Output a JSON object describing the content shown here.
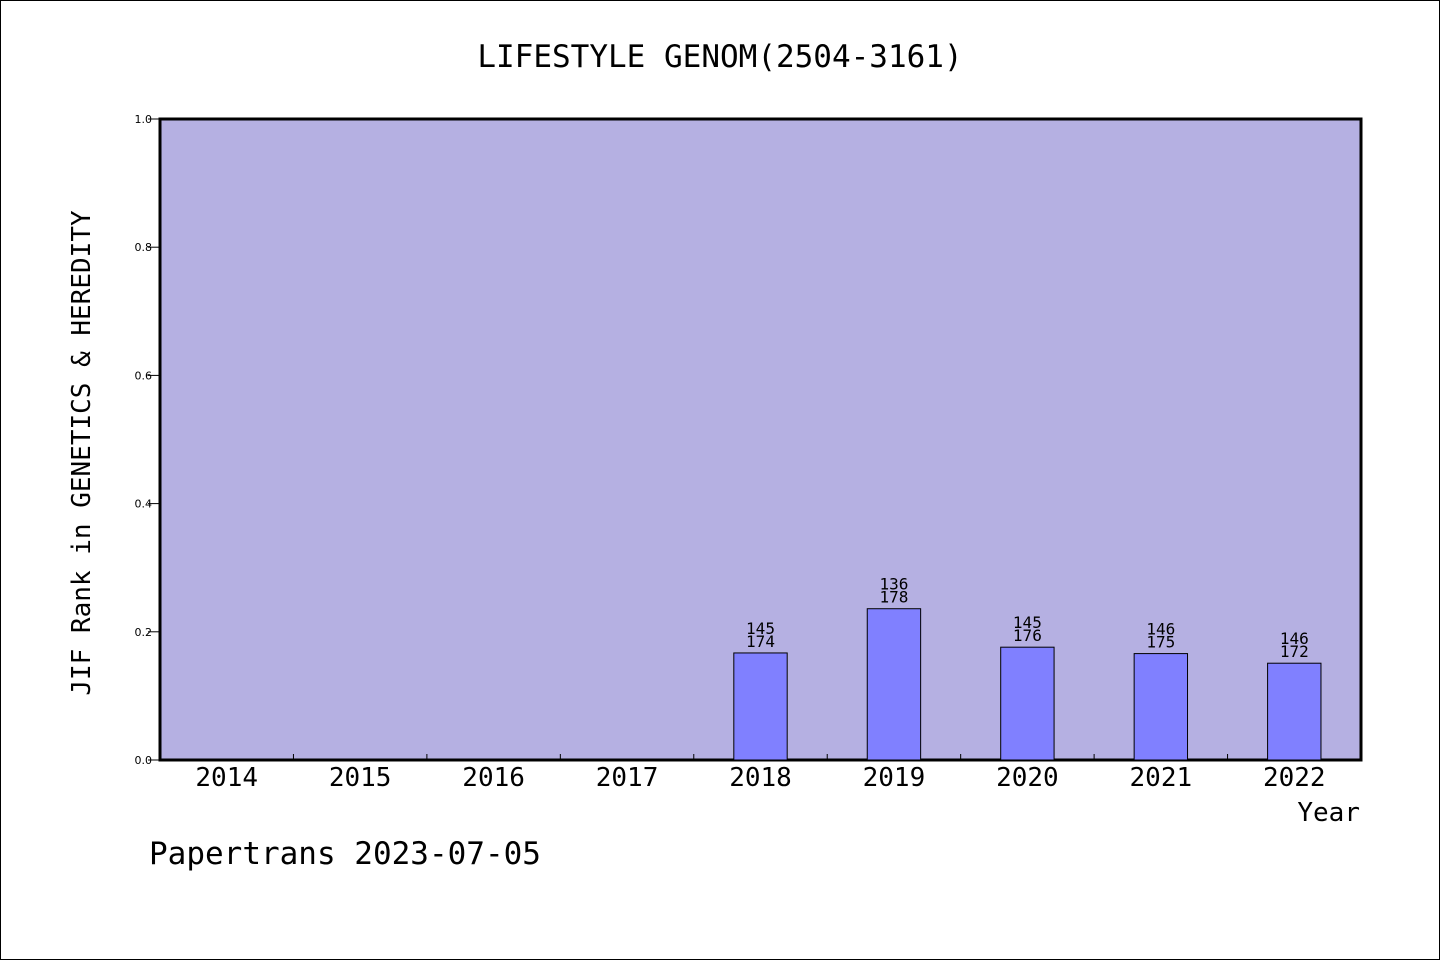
{
  "chart_data": {
    "type": "bar",
    "title": "LIFESTYLE GENOM(2504-3161)",
    "xlabel": "Year",
    "ylabel": "JIF Rank in GENETICS & HEREDITY",
    "ylim": [
      0,
      1
    ],
    "yticks": [
      "0.0",
      "0.2",
      "0.4",
      "0.6",
      "0.8",
      "1.0"
    ],
    "categories": [
      "2014",
      "2015",
      "2016",
      "2017",
      "2018",
      "2019",
      "2020",
      "2021",
      "2022"
    ],
    "values": [
      null,
      null,
      null,
      null,
      0.167,
      0.236,
      0.176,
      0.166,
      0.151
    ],
    "rank": [
      null,
      null,
      null,
      null,
      "145",
      "136",
      "145",
      "146",
      "146"
    ],
    "total": [
      null,
      null,
      null,
      null,
      "174",
      "178",
      "176",
      "175",
      "172"
    ],
    "grid": false,
    "legend": "none"
  },
  "footer": "Papertrans 2023-07-05",
  "colors": {
    "plot_background": "#b5b0e2",
    "bar_fill": "#8080ff",
    "axis": "#000000"
  }
}
